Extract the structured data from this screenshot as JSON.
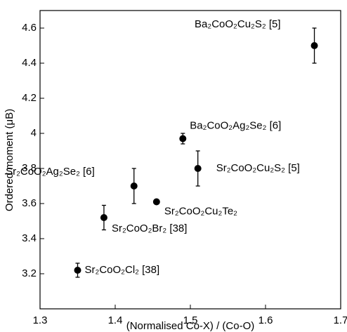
{
  "chart_data": {
    "type": "scatter",
    "x_label": "(Normalised Co-X) / (Co-O)",
    "y_label": "Ordered moment (μB)",
    "x": [
      1.665,
      1.49,
      1.51,
      1.425,
      1.455,
      1.385,
      1.35
    ],
    "values": [
      4.5,
      3.97,
      3.8,
      3.7,
      3.61,
      3.52,
      3.22
    ],
    "errors": [
      0.1,
      0.03,
      0.1,
      0.1,
      0.01,
      0.07,
      0.04
    ],
    "point_labels": [
      "Ba₂CoO₂Cu₂S₂ [5]",
      "Ba₂CoO₂Ag₂Se₂ [6]",
      "Sr₂CoO₂Cu₂S₂ [5]",
      "Sr₂CoO₂Ag₂Se₂ [6]",
      "Sr₂CoO₂Cu₂Te₂",
      "Sr₂CoO₂Br₂ [38]",
      "Sr₂CoO₂Cl₂ [38]"
    ],
    "color": "#000000",
    "xlim": [
      1.3,
      1.7
    ],
    "xticks": [
      1.3,
      1.4,
      1.5,
      1.6,
      1.7
    ],
    "ylim": [
      3.0,
      4.7
    ],
    "yticks": [
      3.2,
      3.4,
      3.6,
      3.8,
      4.0,
      4.2,
      4.4,
      4.6
    ]
  }
}
